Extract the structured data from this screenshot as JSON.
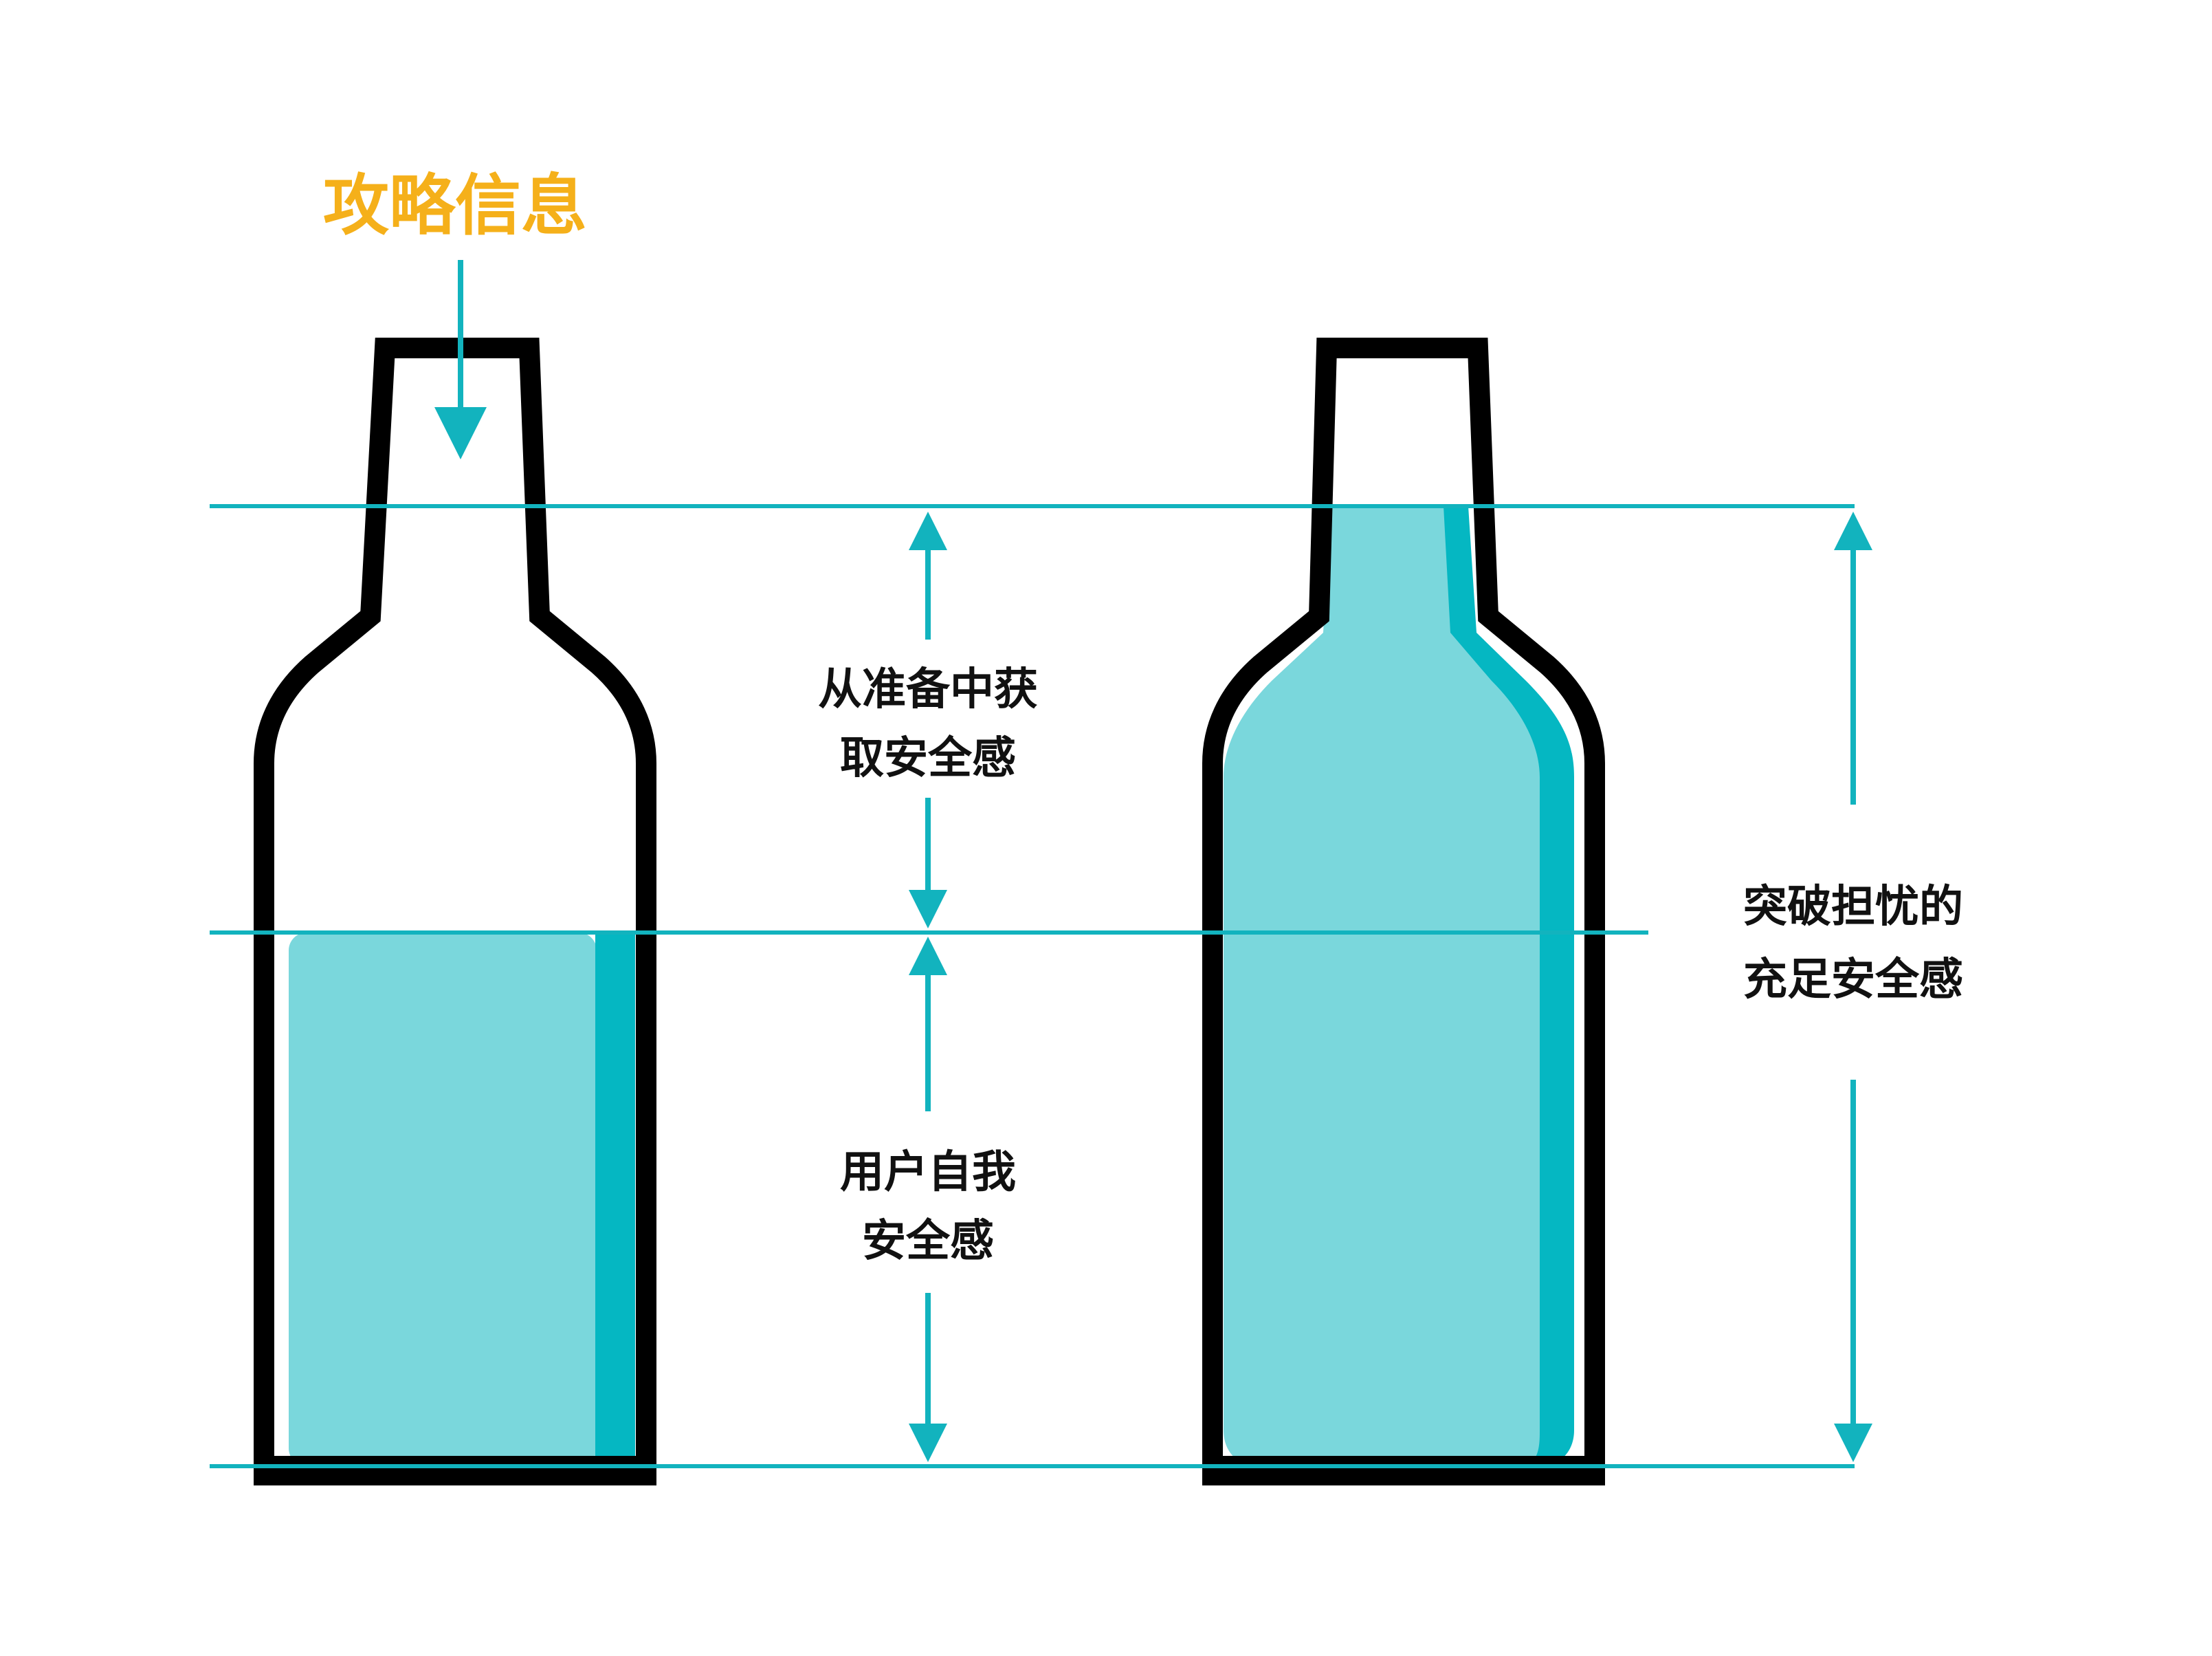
{
  "title": "攻略信息",
  "labels": {
    "preparation_line1": "从准备中获",
    "preparation_line2": "取安全感",
    "self_line1": "用户自我",
    "self_line2": "安全感",
    "worry_line1": "突破担忧的",
    "worry_line2": "充足安全感"
  },
  "colors": {
    "title": "#F5B01A",
    "teal": "#12B3BE",
    "teal_dark": "#05B7C2",
    "fill_light": "#7AD7DC",
    "outline": "#000000"
  }
}
